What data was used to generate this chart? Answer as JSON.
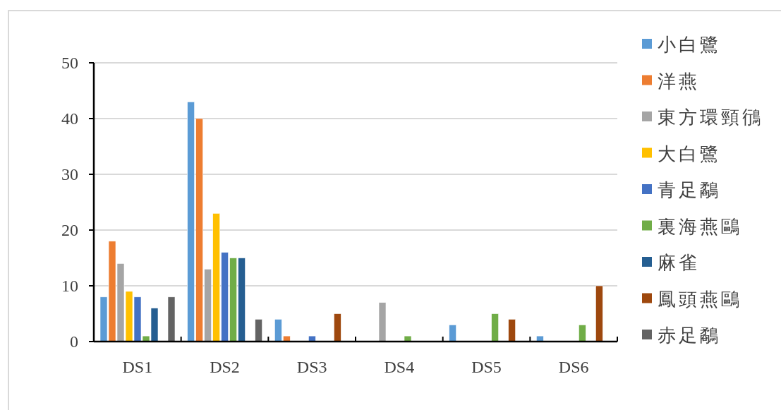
{
  "chart_data": {
    "type": "bar",
    "categories": [
      "DS1",
      "DS2",
      "DS3",
      "DS4",
      "DS5",
      "DS6"
    ],
    "series": [
      {
        "name": "小白鷺",
        "color": "#5b9bd5",
        "values": [
          8,
          43,
          4,
          0,
          3,
          1
        ]
      },
      {
        "name": "洋燕",
        "color": "#ed7d31",
        "values": [
          18,
          40,
          1,
          0,
          0,
          0
        ]
      },
      {
        "name": "東方環頸鴴",
        "color": "#a5a5a5",
        "values": [
          14,
          13,
          0,
          7,
          0,
          0
        ]
      },
      {
        "name": "大白鷺",
        "color": "#ffc000",
        "values": [
          9,
          23,
          0,
          0,
          0,
          0
        ]
      },
      {
        "name": "青足鷸",
        "color": "#4472c4",
        "values": [
          8,
          16,
          1,
          0,
          0,
          0
        ]
      },
      {
        "name": "裏海燕鷗",
        "color": "#70ad47",
        "values": [
          1,
          15,
          0,
          1,
          5,
          3
        ]
      },
      {
        "name": "麻雀",
        "color": "#255e91",
        "values": [
          6,
          15,
          0,
          0,
          0,
          0
        ]
      },
      {
        "name": "鳳頭燕鷗",
        "color": "#9e480e",
        "values": [
          0,
          0,
          5,
          0,
          4,
          10
        ]
      },
      {
        "name": "赤足鷸",
        "color": "#636363",
        "values": [
          8,
          4,
          0,
          0,
          0,
          0
        ]
      }
    ],
    "ylim": [
      0,
      50
    ],
    "yticks": [
      0,
      10,
      20,
      30,
      40,
      50
    ],
    "grid": "y",
    "legend": "right"
  }
}
